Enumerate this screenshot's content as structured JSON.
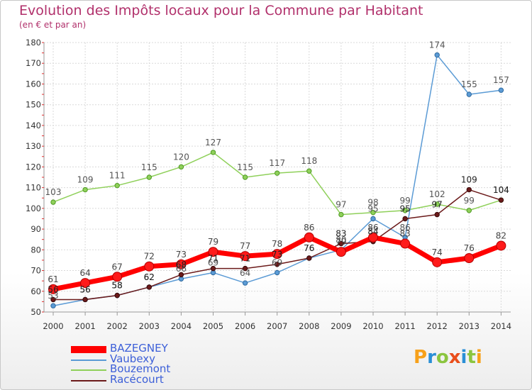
{
  "header": {
    "title": "Evolution des Impôts locaux pour la Commune par Habitant",
    "subtitle": "(en € et par an)"
  },
  "logo": {
    "text": "Proxiti",
    "colors": [
      "#f7a11a",
      "#2a8fd6",
      "#8bc53f",
      "#e94e1b",
      "#2a8fd6",
      "#8bc53f",
      "#f7a11a"
    ]
  },
  "chart_data": {
    "type": "line",
    "x": [
      2000,
      2001,
      2002,
      2003,
      2004,
      2005,
      2006,
      2007,
      2008,
      2009,
      2010,
      2011,
      2012,
      2013,
      2014
    ],
    "ylim": [
      50,
      180
    ],
    "yticks": [
      50,
      60,
      70,
      80,
      90,
      100,
      110,
      120,
      130,
      140,
      150,
      160,
      170,
      180
    ],
    "grid": true,
    "legend_position": "bottom-left",
    "series": [
      {
        "name": "BAZEGNEY",
        "color": "#ff0000",
        "values": [
          61,
          64,
          67,
          72,
          73,
          79,
          77,
          78,
          86,
          79,
          86,
          83,
          74,
          76,
          82
        ]
      },
      {
        "name": "Vaubexy",
        "color": "#5b9bd5",
        "values": [
          53,
          56,
          58,
          62,
          66,
          69,
          64,
          69,
          76,
          80,
          95,
          86,
          174,
          155,
          157
        ]
      },
      {
        "name": "Bouzemont",
        "color": "#8fd05a",
        "values": [
          103,
          109,
          111,
          115,
          120,
          127,
          115,
          117,
          118,
          97,
          98,
          99,
          102,
          99,
          104
        ]
      },
      {
        "name": "Racécourt",
        "color": "#6b1a1a",
        "values": [
          56,
          56,
          58,
          62,
          68,
          71,
          71,
          73,
          76,
          83,
          84,
          95,
          97,
          109,
          104
        ]
      }
    ]
  }
}
